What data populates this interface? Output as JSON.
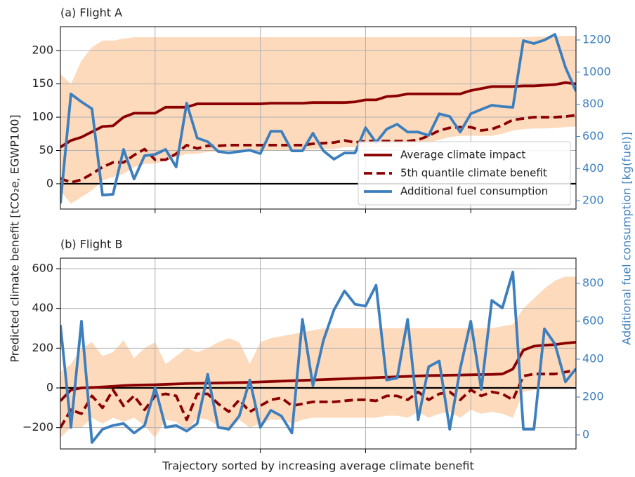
{
  "figure": {
    "xlabel": "Trajectory sorted by increasing average climate benefit",
    "ylabel": "Predicted climate benefit [tCO₂e, EGWP100]",
    "y2label": "Additional fuel consumption [kg(fuel)]"
  },
  "chart_data": [
    {
      "type": "line",
      "title": "(a) Flight A",
      "xlim": [
        0,
        49
      ],
      "xticks": [
        9,
        19,
        29,
        39
      ],
      "ylim": [
        -38,
        236
      ],
      "yticks": [
        0,
        50,
        100,
        150,
        200
      ],
      "y2lim": [
        148,
        1283
      ],
      "y2ticks": [
        200,
        400,
        600,
        800,
        1000,
        1200
      ],
      "grid": true,
      "hline": 0,
      "legend": "lower right",
      "band": {
        "color": "#fdd3b0",
        "upper": [
          165,
          150,
          185,
          205,
          215,
          215,
          218,
          220,
          220,
          220,
          220,
          220,
          220,
          220,
          220,
          220,
          220,
          220,
          220,
          220,
          220,
          220,
          220,
          220,
          220,
          220,
          220,
          220,
          220,
          220,
          220,
          220,
          220,
          220,
          220,
          220,
          220,
          220,
          220,
          220,
          220,
          220,
          220,
          220,
          220,
          221,
          221,
          222,
          222,
          222
        ],
        "lower": [
          -10,
          -30,
          -20,
          -10,
          5,
          10,
          15,
          25,
          30,
          30,
          35,
          40,
          45,
          45,
          48,
          48,
          50,
          50,
          50,
          50,
          50,
          50,
          50,
          50,
          52,
          52,
          52,
          55,
          55,
          55,
          55,
          55,
          55,
          55,
          58,
          62,
          66,
          70,
          72,
          72,
          72,
          72,
          75,
          80,
          82,
          83,
          83,
          84,
          85,
          86
        ]
      },
      "series": [
        {
          "name": "Average climate impact",
          "color": "#8b0000",
          "linestyle": "solid",
          "values": [
            55,
            65,
            70,
            78,
            86,
            87,
            100,
            106,
            106,
            106,
            115,
            115,
            115,
            120,
            120,
            120,
            120,
            120,
            120,
            120,
            121,
            121,
            121,
            121,
            122,
            122,
            122,
            122,
            123,
            126,
            126,
            131,
            132,
            135,
            135,
            135,
            135,
            135,
            135,
            140,
            143,
            146,
            146,
            146,
            147,
            147,
            148,
            149,
            152,
            150
          ]
        },
        {
          "name": "5th quantile climate benefit",
          "color": "#8b0000",
          "linestyle": "dashed",
          "values": [
            8,
            2,
            6,
            15,
            25,
            32,
            32,
            43,
            52,
            36,
            36,
            45,
            58,
            53,
            57,
            57,
            58,
            58,
            58,
            58,
            58,
            58,
            58,
            58,
            60,
            61,
            62,
            65,
            62,
            64,
            64,
            64,
            64,
            64,
            66,
            72,
            80,
            84,
            85,
            85,
            80,
            82,
            88,
            96,
            98,
            100,
            100,
            100,
            101,
            103
          ]
        },
        {
          "name": "Additional fuel consumption",
          "color": "#3d7fbd",
          "linestyle": "solid",
          "axis": "y2",
          "values": [
            183,
            864,
            815,
            772,
            235,
            240,
            519,
            335,
            480,
            488,
            519,
            410,
            807,
            590,
            567,
            506,
            497,
            506,
            514,
            493,
            632,
            632,
            510,
            510,
            620,
            510,
            458,
            497,
            497,
            654,
            562,
            645,
            676,
            627,
            627,
            606,
            741,
            724,
            627,
            741,
            768,
            794,
            786,
            781,
            1196,
            1178,
            1200,
            1235,
            1030,
            881
          ]
        }
      ]
    },
    {
      "type": "line",
      "title": "(b) Flight B",
      "xlim": [
        0,
        49
      ],
      "xticks": [
        9,
        19,
        29,
        39
      ],
      "ylim": [
        -307,
        653
      ],
      "yticks": [
        {
          "value": -200,
          "label": "−200"
        },
        0,
        200,
        400,
        600
      ],
      "y2lim": [
        -74,
        933
      ],
      "y2ticks": [
        0,
        200,
        400,
        600,
        800
      ],
      "grid": true,
      "hline": 0,
      "band": {
        "color": "#fdd3b0",
        "upper": [
          80,
          120,
          200,
          230,
          160,
          180,
          240,
          150,
          200,
          230,
          120,
          160,
          200,
          180,
          200,
          230,
          250,
          230,
          120,
          230,
          250,
          260,
          270,
          280,
          290,
          300,
          300,
          300,
          300,
          300,
          300,
          300,
          300,
          300,
          300,
          300,
          300,
          300,
          300,
          300,
          300,
          300,
          310,
          320,
          400,
          450,
          500,
          540,
          560,
          560
        ],
        "lower": [
          -250,
          -200,
          -200,
          -150,
          -180,
          -150,
          -170,
          -150,
          -190,
          -250,
          -160,
          -170,
          -220,
          -150,
          -160,
          -190,
          -220,
          -160,
          -200,
          -180,
          -160,
          -160,
          -180,
          -160,
          -150,
          -150,
          -150,
          -150,
          -150,
          -150,
          -150,
          -140,
          -140,
          -150,
          -120,
          -150,
          -130,
          -120,
          -150,
          -110,
          -130,
          -120,
          -130,
          -150,
          -20,
          -10,
          -5,
          0,
          0,
          10
        ]
      },
      "series": [
        {
          "color": "#8b0000",
          "linestyle": "solid",
          "values": [
            -65,
            -10,
            0,
            2,
            5,
            8,
            12,
            14,
            15,
            16,
            18,
            20,
            22,
            23,
            24,
            25,
            26,
            27,
            28,
            30,
            32,
            34,
            36,
            38,
            40,
            42,
            44,
            46,
            48,
            50,
            52,
            54,
            56,
            58,
            60,
            62,
            63,
            64,
            65,
            66,
            67,
            68,
            70,
            95,
            190,
            210,
            215,
            218,
            225,
            230
          ]
        },
        {
          "color": "#8b0000",
          "linestyle": "dashed",
          "values": [
            -200,
            -110,
            -130,
            -40,
            -100,
            -10,
            -90,
            -40,
            -110,
            -40,
            -30,
            -40,
            -160,
            -30,
            -30,
            -80,
            -120,
            -60,
            -120,
            -90,
            -60,
            -50,
            -90,
            -80,
            -70,
            -70,
            -70,
            -65,
            -60,
            -60,
            -65,
            -40,
            -40,
            -60,
            -20,
            -60,
            -30,
            -20,
            -60,
            -10,
            -40,
            -20,
            -30,
            -60,
            60,
            70,
            70,
            70,
            80,
            90
          ]
        },
        {
          "color": "#3d7fbd",
          "linestyle": "solid",
          "axis": "y2",
          "values": [
            580,
            40,
            600,
            -40,
            30,
            50,
            60,
            10,
            50,
            250,
            40,
            50,
            20,
            60,
            320,
            40,
            30,
            100,
            290,
            40,
            130,
            100,
            10,
            610,
            260,
            500,
            660,
            760,
            690,
            680,
            790,
            290,
            300,
            610,
            80,
            360,
            390,
            30,
            350,
            600,
            240,
            710,
            670,
            860,
            30,
            30,
            560,
            480,
            280,
            350
          ]
        }
      ]
    }
  ]
}
